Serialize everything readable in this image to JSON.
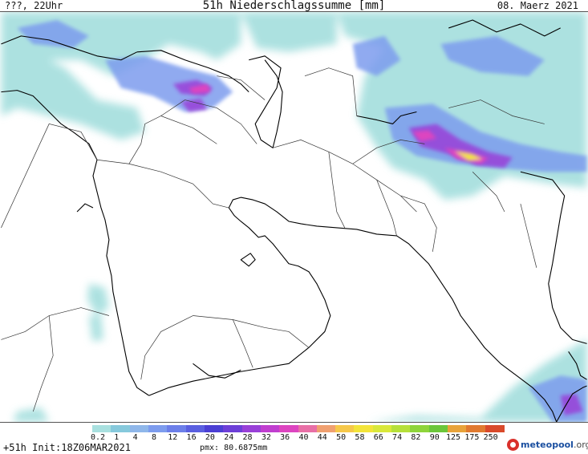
{
  "header": {
    "left": "???, 22Uhr",
    "center": "51h Niederschlagssumme [mm]",
    "right": "08. Maerz 2021"
  },
  "footer": {
    "left": "+51h Init:18Z06MAR2021",
    "pmax": "pmx: 80.6875mm",
    "brand_name": "meteopool",
    "brand_tld": ".org"
  },
  "legend": {
    "labels": [
      "0.2",
      "1",
      "4",
      "8",
      "12",
      "16",
      "20",
      "24",
      "28",
      "32",
      "36",
      "40",
      "44",
      "50",
      "58",
      "66",
      "74",
      "82",
      "90",
      "125",
      "175",
      "250"
    ],
    "colors": [
      "#a8e0df",
      "#86c9dc",
      "#8fb7ea",
      "#7d9cee",
      "#6c7fe9",
      "#5a5fe0",
      "#4b3fd4",
      "#6d3fd8",
      "#9940d8",
      "#c03ecf",
      "#dd45c0",
      "#e86fa6",
      "#f0a070",
      "#f6c84a",
      "#f3e43a",
      "#d9e83a",
      "#b6e03a",
      "#8ed43a",
      "#6bc63a",
      "#e8a33a",
      "#e07a30",
      "#d94a2b"
    ]
  },
  "map": {
    "ocean_color": "#ffffff",
    "land_color": "#ffffff",
    "coast_color": "#000000",
    "border_color": "#333333",
    "precip_light": "#a8e0df",
    "precip_mid": "#7d9cee",
    "precip_heavy": "#c03ecf",
    "precip_peak": "#f3e43a"
  }
}
